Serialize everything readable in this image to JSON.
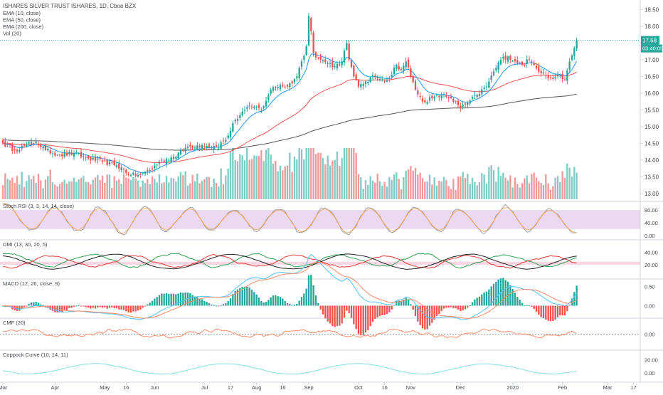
{
  "main": {
    "title": "ISHARES SILVER TRUST ISHARES, 1D, Cboe BZX",
    "indicators": [
      "EMA (10, close)",
      "EMA (50, close)",
      "EMA (200, close)",
      "Vol (20)"
    ],
    "price_label": "17.58",
    "countdown_label": "03:40:05"
  },
  "panes": {
    "stoch": {
      "label": "Stoch RSI (3, 3, 14, 14, close)"
    },
    "dmi": {
      "label": "DMI (13, 30, 20, 5)"
    },
    "macd": {
      "label": "MACD (12, 26, close, 9)"
    },
    "cmf": {
      "label": "CMF (20)"
    },
    "coppock": {
      "label": "Coppock Curve (10, 14, 11)"
    }
  },
  "x_axis": {
    "ticks": [
      {
        "idx": 0,
        "label": "Mar"
      },
      {
        "idx": 22,
        "label": "Apr"
      },
      {
        "idx": 43,
        "label": "May"
      },
      {
        "idx": 52,
        "label": "16"
      },
      {
        "idx": 64,
        "label": "Jun"
      },
      {
        "idx": 85,
        "label": "Jul"
      },
      {
        "idx": 96,
        "label": "17"
      },
      {
        "idx": 107,
        "label": "Aug"
      },
      {
        "idx": 118,
        "label": "16"
      },
      {
        "idx": 129,
        "label": "Sep"
      },
      {
        "idx": 150,
        "label": "Oct"
      },
      {
        "idx": 161,
        "label": "16"
      },
      {
        "idx": 172,
        "label": "Nov"
      },
      {
        "idx": 193,
        "label": "Dec"
      },
      {
        "idx": 215,
        "label": "2020"
      },
      {
        "idx": 236,
        "label": "Feb"
      },
      {
        "idx": 255,
        "label": "Mar"
      },
      {
        "idx": 266,
        "label": "17"
      }
    ]
  },
  "colors": {
    "up": "#26a69a",
    "down": "#ef5350",
    "vol_up": "#80cbc4",
    "vol_down": "#ef9a9a",
    "ema10": "#2196f3",
    "ema50": "#ef5350",
    "ema200": "#555555",
    "stoch_band": "#e1bee7",
    "stoch_k": "#9aa0a6",
    "stoch_d": "#f4a460",
    "dmi_plus": "#2e9e4f",
    "dmi_minus": "#e53935",
    "adx": "#222222",
    "dmi_band": "#f8bbd0",
    "macd_line": "#4fc3f7",
    "signal_line": "#ff8a65",
    "cmf": "#ff8a65",
    "coppock": "#80deea",
    "price_tag": "#26a69a"
  },
  "chart_data": [
    {
      "type": "candlestick",
      "title": "ISHARES SILVER TRUST ISHARES, 1D, Cboe BZX",
      "ylim": [
        12.85,
        18.7
      ],
      "y_ticks": [
        13.0,
        13.5,
        14.0,
        14.5,
        15.0,
        15.5,
        16.0,
        16.5,
        17.0,
        17.5,
        18.0,
        18.5
      ],
      "y_tick_labels": [
        "13.00",
        "13.50",
        "14.00",
        "14.50",
        "15.00",
        "15.50",
        "16.00",
        "16.50",
        "17.00",
        "17.50",
        "18.00",
        "18.50"
      ],
      "last_price": 17.58,
      "series": [
        {
          "name": "EMA (10, close)"
        },
        {
          "name": "EMA (50, close)"
        },
        {
          "name": "EMA (200, close)"
        },
        {
          "name": "Vol (20)"
        }
      ],
      "close_anchors": [
        [
          0,
          14.5
        ],
        [
          5,
          14.3
        ],
        [
          10,
          14.45
        ],
        [
          14,
          14.55
        ],
        [
          18,
          14.3
        ],
        [
          24,
          14.15
        ],
        [
          30,
          14.2
        ],
        [
          36,
          14.05
        ],
        [
          42,
          13.95
        ],
        [
          48,
          13.85
        ],
        [
          54,
          13.55
        ],
        [
          58,
          13.55
        ],
        [
          62,
          13.7
        ],
        [
          66,
          13.95
        ],
        [
          72,
          14.1
        ],
        [
          78,
          14.4
        ],
        [
          84,
          14.45
        ],
        [
          90,
          14.4
        ],
        [
          94,
          14.6
        ],
        [
          98,
          15.2
        ],
        [
          102,
          15.5
        ],
        [
          106,
          15.6
        ],
        [
          109,
          15.5
        ],
        [
          113,
          16.1
        ],
        [
          117,
          16.25
        ],
        [
          120,
          16.2
        ],
        [
          124,
          16.5
        ],
        [
          126,
          16.95
        ],
        [
          128,
          17.4
        ],
        [
          129,
          18.3
        ],
        [
          130,
          17.85
        ],
        [
          131,
          17.2
        ],
        [
          134,
          17.0
        ],
        [
          137,
          16.9
        ],
        [
          140,
          16.8
        ],
        [
          143,
          16.95
        ],
        [
          145,
          17.5
        ],
        [
          146,
          17.0
        ],
        [
          148,
          16.5
        ],
        [
          150,
          16.2
        ],
        [
          153,
          16.35
        ],
        [
          157,
          16.5
        ],
        [
          160,
          16.4
        ],
        [
          163,
          16.45
        ],
        [
          166,
          16.85
        ],
        [
          168,
          16.7
        ],
        [
          170,
          16.95
        ],
        [
          172,
          16.5
        ],
        [
          174,
          16.1
        ],
        [
          177,
          15.75
        ],
        [
          181,
          15.85
        ],
        [
          185,
          15.95
        ],
        [
          189,
          15.85
        ],
        [
          193,
          15.55
        ],
        [
          196,
          15.7
        ],
        [
          200,
          15.95
        ],
        [
          204,
          16.2
        ],
        [
          207,
          16.65
        ],
        [
          210,
          17.0
        ],
        [
          213,
          17.1
        ],
        [
          216,
          16.95
        ],
        [
          219,
          16.85
        ],
        [
          222,
          17.0
        ],
        [
          225,
          16.75
        ],
        [
          228,
          16.6
        ],
        [
          231,
          16.45
        ],
        [
          234,
          16.55
        ],
        [
          237,
          16.4
        ],
        [
          239,
          16.95
        ],
        [
          241,
          17.35
        ],
        [
          242,
          17.58
        ]
      ]
    },
    {
      "type": "line",
      "title": "Stoch RSI (3, 3, 14, 14, close)",
      "ylim": [
        -5,
        98
      ],
      "y_ticks": [
        0,
        40,
        80
      ],
      "y_tick_labels": [
        "0.00",
        "40.00",
        "80.00"
      ],
      "band": [
        20,
        80
      ]
    },
    {
      "type": "line",
      "title": "DMI (13, 30, 20, 5)",
      "ylim": [
        2,
        55
      ],
      "y_ticks": [
        20,
        40
      ],
      "y_tick_labels": [
        "20.00",
        "40.00"
      ],
      "band": [
        20,
        25
      ]
    },
    {
      "type": "line",
      "title": "MACD (12, 26, close, 9)",
      "ylim": [
        -0.25,
        0.62
      ],
      "y_ticks": [
        0,
        0.5
      ],
      "y_tick_labels": [
        "0.00",
        "0.50"
      ]
    },
    {
      "type": "line",
      "title": "CMF (20)",
      "ylim": [
        -0.35,
        0.35
      ],
      "y_ticks": [
        0
      ],
      "y_tick_labels": [
        "0.00"
      ]
    },
    {
      "type": "line",
      "title": "Coppock Curve (10, 14, 11)",
      "ylim": [
        -10,
        30
      ],
      "y_ticks": [
        0,
        20
      ],
      "y_tick_labels": [
        "0.00",
        "20.00"
      ]
    }
  ]
}
